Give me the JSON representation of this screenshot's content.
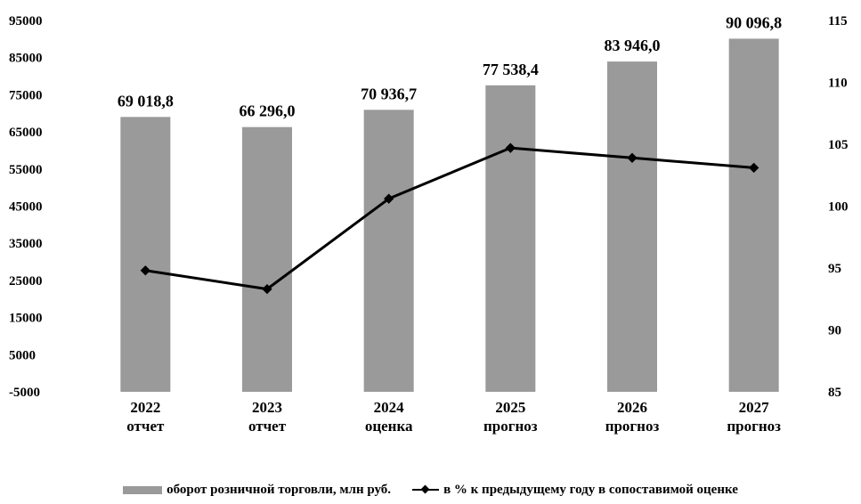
{
  "chart_data": {
    "type": "bar",
    "title": "",
    "categories": [
      [
        "2022",
        "отчет"
      ],
      [
        "2023",
        "отчет"
      ],
      [
        "2024",
        "оценка"
      ],
      [
        "2025",
        "прогноз"
      ],
      [
        "2026",
        "прогноз"
      ],
      [
        "2027",
        "прогноз"
      ]
    ],
    "series": [
      {
        "name": "оборот розничной торговли, млн руб.",
        "type": "bar",
        "axis": "left",
        "values": [
          69018.8,
          66296.0,
          70936.7,
          77538.4,
          83946.0,
          90096.8
        ],
        "labels": [
          "69 018,8",
          "66 296,0",
          "70 936,7",
          "77 538,4",
          "83 946,0",
          "90 096,8"
        ],
        "color": "#9a9a9a"
      },
      {
        "name": "в % к предыдущему году в сопоставимой оценке",
        "type": "line",
        "axis": "right",
        "values": [
          94.8,
          93.3,
          100.6,
          104.7,
          103.9,
          103.1
        ],
        "color": "#000000"
      }
    ],
    "y_left": {
      "min": -5000,
      "max": 95000,
      "ticks": [
        95000,
        85000,
        75000,
        65000,
        55000,
        45000,
        35000,
        25000,
        15000,
        5000,
        -5000
      ],
      "tick_labels": [
        "95000",
        "85000",
        "75000",
        "65000",
        "55000",
        "45000",
        "35000",
        "25000",
        "15000",
        "5000",
        "-5000"
      ]
    },
    "y_right": {
      "min": 85,
      "max": 115,
      "ticks": [
        115,
        110,
        105,
        100,
        95,
        90,
        85
      ],
      "tick_labels": [
        "115",
        "110",
        "105",
        "100",
        "95",
        "90",
        "85"
      ]
    },
    "grid": false,
    "legend": "bottom"
  }
}
